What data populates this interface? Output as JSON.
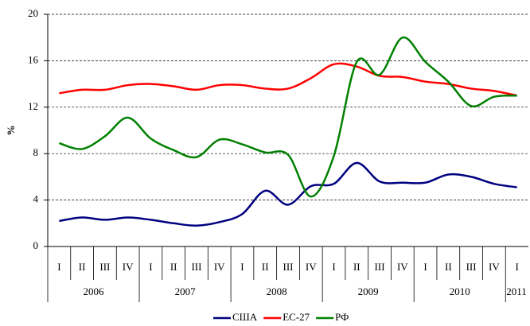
{
  "chart_data": {
    "type": "line",
    "y_label": "%",
    "categories": [
      "I",
      "II",
      "III",
      "IV",
      "I",
      "II",
      "III",
      "IV",
      "I",
      "II",
      "III",
      "IV",
      "I",
      "II",
      "III",
      "IV",
      "I",
      "II",
      "III",
      "IV",
      "I"
    ],
    "years": [
      "2006",
      "2006",
      "2006",
      "2006",
      "2007",
      "2007",
      "2007",
      "2007",
      "2008",
      "2008",
      "2008",
      "2008",
      "2009",
      "2009",
      "2009",
      "2009",
      "2010",
      "2010",
      "2010",
      "2010",
      "2011"
    ],
    "series": [
      {
        "name": "США",
        "color": "#000080",
        "values": [
          2.2,
          2.5,
          2.3,
          2.5,
          2.3,
          2.0,
          1.8,
          2.1,
          2.8,
          4.8,
          3.6,
          5.2,
          5.4,
          7.2,
          5.6,
          5.5,
          5.5,
          6.2,
          6.0,
          5.4,
          5.1
        ]
      },
      {
        "name": "ЕС-27",
        "color": "#ff0000",
        "values": [
          13.2,
          13.5,
          13.5,
          13.9,
          14.0,
          13.8,
          13.5,
          13.9,
          13.9,
          13.6,
          13.6,
          14.5,
          15.7,
          15.5,
          14.7,
          14.6,
          14.2,
          14.0,
          13.6,
          13.4,
          13.0
        ]
      },
      {
        "name": "РФ",
        "color": "#008000",
        "values": [
          8.9,
          8.4,
          9.5,
          11.1,
          9.3,
          8.3,
          7.7,
          9.2,
          8.8,
          8.1,
          7.9,
          4.3,
          7.8,
          15.9,
          14.8,
          18.0,
          15.9,
          14.2,
          12.1,
          12.9,
          13.0
        ]
      }
    ],
    "ylim": [
      0,
      20
    ],
    "yticks": [
      0,
      4,
      8,
      12,
      16,
      20
    ],
    "grid": true,
    "legend": "bottom"
  }
}
